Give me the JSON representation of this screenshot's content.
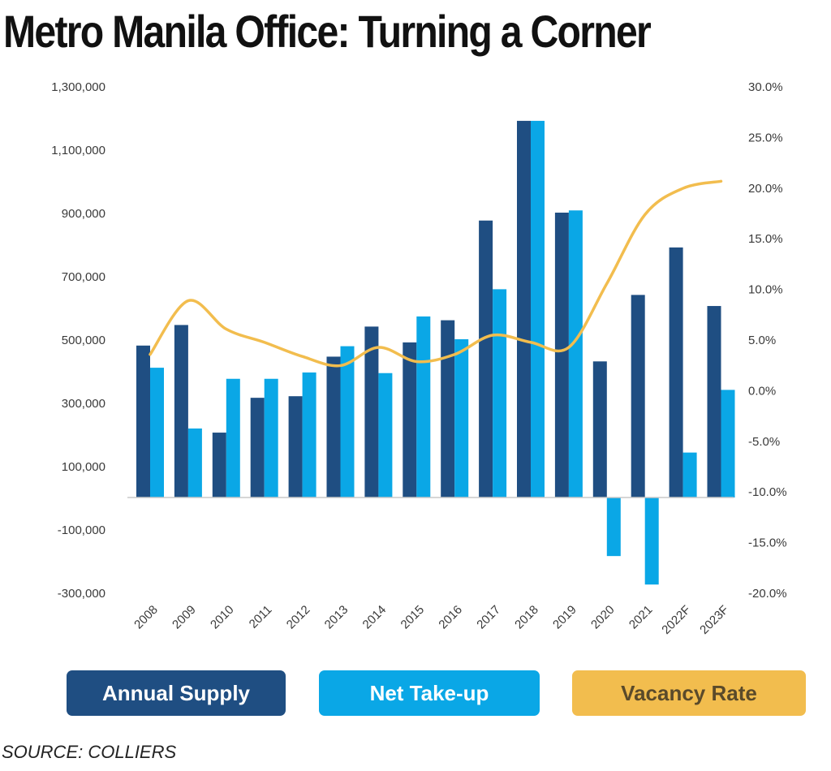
{
  "title": "Metro Manila Office: Turning a Corner",
  "source": "SOURCE: COLLIERS",
  "legend": [
    {
      "key": "supply",
      "label": "Annual Supply",
      "color": "#1f4e82",
      "text_color": "#ffffff"
    },
    {
      "key": "takeup",
      "label": "Net Take-up",
      "color": "#0aa7e6",
      "text_color": "#ffffff"
    },
    {
      "key": "vacancy",
      "label": "Vacancy Rate",
      "color": "#f2bd4e",
      "text_color": "#5a4a2a"
    }
  ],
  "chart_data": {
    "type": "bar",
    "title": "Metro Manila Office: Turning a Corner",
    "categories": [
      "2008",
      "2009",
      "2010",
      "2011",
      "2012",
      "2013",
      "2014",
      "2015",
      "2016",
      "2017",
      "2018",
      "2019",
      "2020",
      "2021",
      "2022F",
      "2023F"
    ],
    "series": [
      {
        "name": "Annual Supply",
        "type": "bar",
        "axis": "left",
        "color": "#1f4e82",
        "values": [
          480000,
          545000,
          205000,
          315000,
          320000,
          445000,
          540000,
          490000,
          560000,
          875000,
          1190000,
          900000,
          430000,
          640000,
          790000,
          605000
        ]
      },
      {
        "name": "Net Take-up",
        "type": "bar",
        "axis": "left",
        "color": "#0aa7e6",
        "values": [
          410000,
          218000,
          375000,
          375000,
          395000,
          478000,
          393000,
          572000,
          500000,
          658000,
          1190000,
          907000,
          -185000,
          -275000,
          142000,
          340000
        ]
      },
      {
        "name": "Vacancy Rate",
        "type": "line",
        "axis": "right",
        "color": "#f2bd4e",
        "values": [
          3.5,
          8.8,
          6.0,
          4.7,
          3.3,
          2.4,
          4.2,
          2.8,
          3.5,
          5.4,
          4.7,
          4.2,
          10.5,
          17.3,
          19.9,
          20.6
        ]
      }
    ],
    "y_left": {
      "min": -300000,
      "max": 1300000,
      "ticks": [
        1300000,
        1100000,
        900000,
        700000,
        500000,
        300000,
        100000,
        -100000,
        -300000
      ],
      "tick_labels": [
        "1,300,000",
        "1,100,000",
        "900,000",
        "700,000",
        "500,000",
        "300,000",
        "100,000",
        "-100,000",
        "-300,000"
      ]
    },
    "y_right": {
      "min": -20,
      "max": 30,
      "ticks": [
        30,
        25,
        20,
        15,
        10,
        5,
        0,
        -5,
        -10,
        -15,
        -20
      ],
      "tick_labels": [
        "30.0%",
        "25.0%",
        "20.0%",
        "15.0%",
        "10.0%",
        "5.0%",
        "0.0%",
        "-5.0%",
        "-10.0%",
        "-15.0%",
        "-20.0%"
      ]
    },
    "grid": false,
    "legend_position": "bottom"
  }
}
